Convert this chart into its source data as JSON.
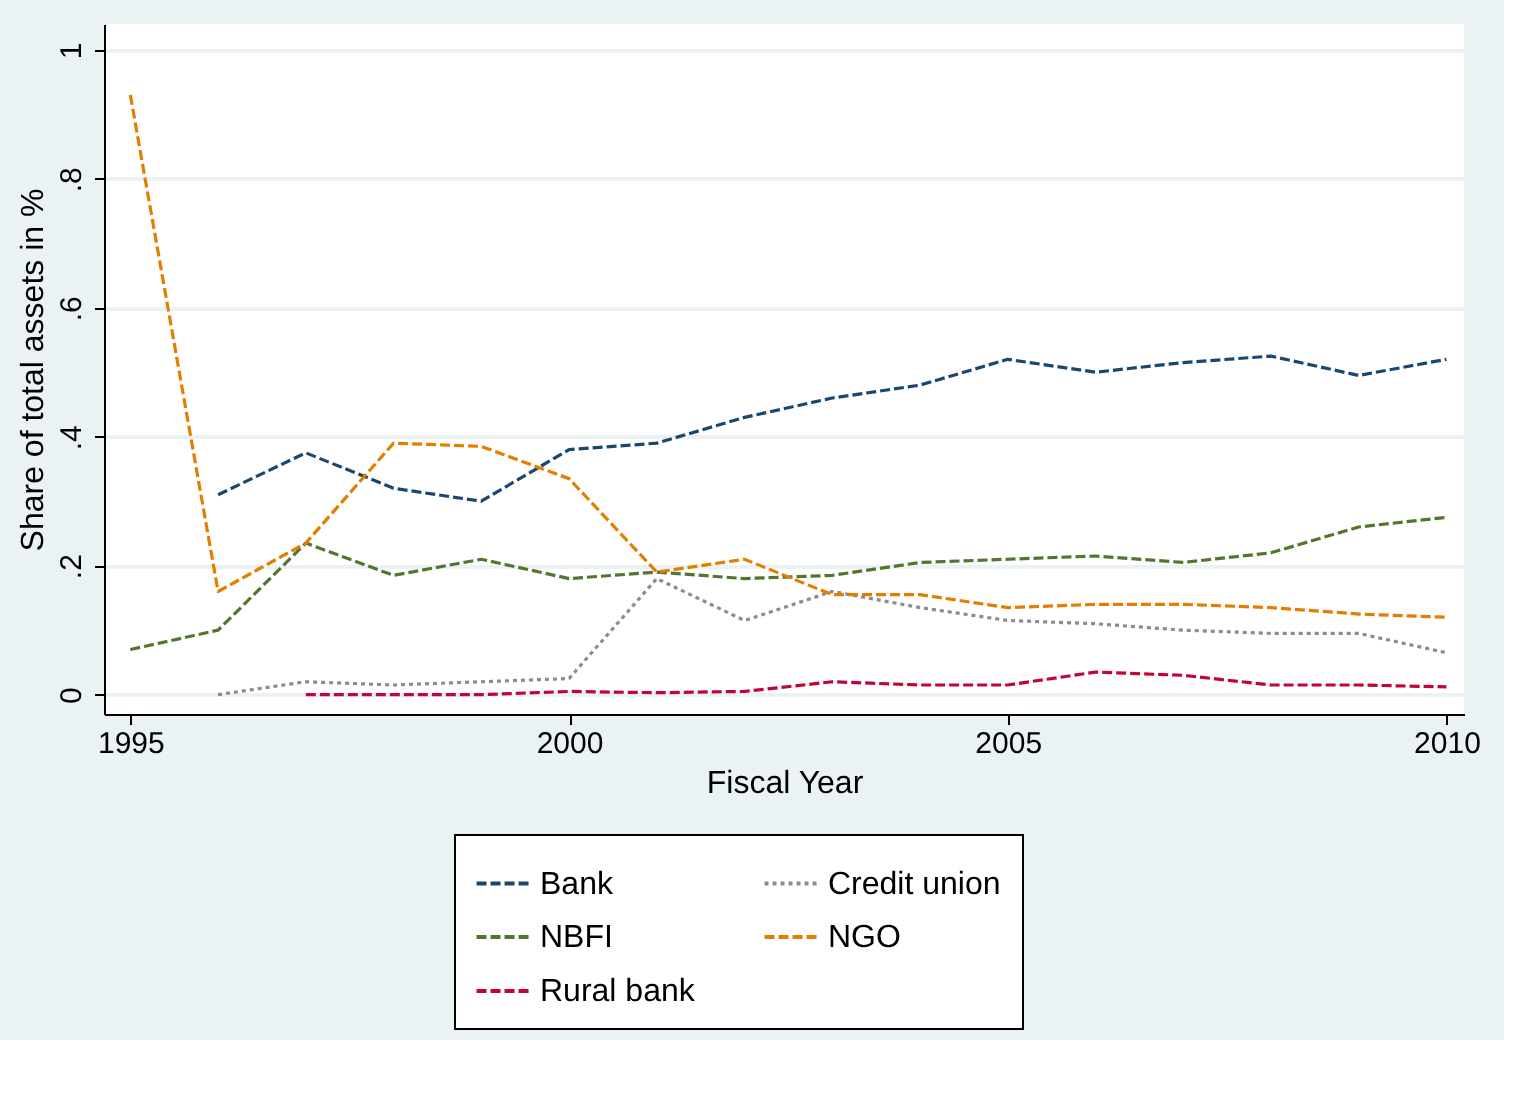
{
  "chart_data": {
    "type": "line",
    "xlabel": "Fiscal Year",
    "ylabel": "Share of total assets in %",
    "x": [
      1995,
      1996,
      1997,
      1998,
      1999,
      2000,
      2001,
      2002,
      2003,
      2004,
      2005,
      2006,
      2007,
      2008,
      2009,
      2010
    ],
    "series": [
      {
        "name": "Bank",
        "color": "#1a476f",
        "line_style": "dashed",
        "values": [
          null,
          0.31,
          0.375,
          0.32,
          0.3,
          0.38,
          0.39,
          0.43,
          0.46,
          0.48,
          0.52,
          0.5,
          0.515,
          0.525,
          0.495,
          0.52
        ]
      },
      {
        "name": "Credit union",
        "color": "#8c8c8c",
        "line_style": "dotted",
        "values": [
          null,
          0.0,
          0.02,
          0.015,
          0.02,
          0.025,
          0.18,
          0.115,
          0.16,
          0.135,
          0.115,
          0.11,
          0.1,
          0.095,
          0.095,
          0.065
        ]
      },
      {
        "name": "NBFI",
        "color": "#55752f",
        "line_style": "dashed",
        "values": [
          0.07,
          0.1,
          0.235,
          0.185,
          0.21,
          0.18,
          0.19,
          0.18,
          0.185,
          0.205,
          0.21,
          0.215,
          0.205,
          0.22,
          0.26,
          0.275
        ]
      },
      {
        "name": "NGO",
        "color": "#e37e00",
        "line_style": "dashed",
        "values": [
          0.93,
          0.16,
          0.235,
          0.39,
          0.385,
          0.335,
          0.19,
          0.21,
          0.155,
          0.155,
          0.135,
          0.14,
          0.14,
          0.135,
          0.125,
          0.12
        ]
      },
      {
        "name": "Rural bank",
        "color": "#c10534",
        "line_style": "dashed",
        "values": [
          null,
          null,
          0.0,
          0.0,
          0.0,
          0.005,
          0.003,
          0.005,
          0.02,
          0.015,
          0.015,
          0.035,
          0.03,
          0.015,
          0.015,
          0.012
        ]
      }
    ],
    "xlim": [
      1994.7,
      2010.2
    ],
    "xticks": [
      1995,
      2000,
      2005,
      2010
    ],
    "ylim": [
      -0.03,
      1.04
    ],
    "yticks": [
      {
        "value": 0,
        "label": "0"
      },
      {
        "value": 0.2,
        "label": ".2"
      },
      {
        "value": 0.4,
        "label": ".4"
      },
      {
        "value": 0.6,
        "label": ".6"
      },
      {
        "value": 0.8,
        "label": ".8"
      },
      {
        "value": 1,
        "label": "1"
      }
    ],
    "grid": "y",
    "legend": "bottom"
  }
}
